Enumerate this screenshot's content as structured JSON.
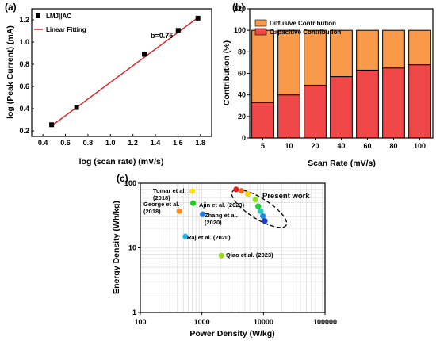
{
  "chart_data": [
    {
      "panel_label": "(a)",
      "type": "scatter",
      "xlabel": "log (scan rate) (mV/s)",
      "ylabel": "log (Peak Current) (mA)",
      "xlim": [
        0.3,
        1.9
      ],
      "ylim": [
        0.15,
        1.3
      ],
      "xticks": [
        "0.4",
        "0.6",
        "0.8",
        "1.0",
        "1.2",
        "1.4",
        "1.6",
        "1.8"
      ],
      "yticks": [
        "0.2",
        "0.4",
        "0.6",
        "0.8",
        "1.0",
        "1.2"
      ],
      "series": [
        {
          "name": "LMJ||AC",
          "color": "#000000",
          "x": [
            0.477,
            0.699,
            1.301,
            1.602,
            1.778
          ],
          "y": [
            0.255,
            0.41,
            0.89,
            1.105,
            1.215
          ]
        },
        {
          "name": "Linear Fitting",
          "color": "#e31a1c",
          "x": [
            0.477,
            1.778
          ],
          "y": [
            0.245,
            1.22
          ]
        }
      ],
      "annotation": "b=0.75",
      "legend": "top-left"
    },
    {
      "panel_label": "(b)",
      "type": "bar",
      "xlabel": "Scan Rate (mV/s)",
      "ylabel": "Contribution (%)",
      "ylim": [
        0,
        120
      ],
      "yticks": [
        "0",
        "20",
        "40",
        "60",
        "80",
        "100",
        "120"
      ],
      "categories": [
        "5",
        "10",
        "20",
        "40",
        "60",
        "80",
        "100"
      ],
      "series": [
        {
          "name": "Capacitive Contribution",
          "color": "#f04848",
          "values": [
            33,
            40,
            49,
            57,
            63,
            65,
            68
          ]
        },
        {
          "name": "Diffusive Contribution",
          "color": "#f9994a",
          "values": [
            67,
            60,
            51,
            43,
            37,
            35,
            32
          ]
        }
      ],
      "legend": "top"
    },
    {
      "panel_label": "(c)",
      "type": "scatter",
      "xlabel": "Power Density (W/kg)",
      "ylabel": "Energy Density (Wh/kg)",
      "xscale": "log",
      "yscale": "log",
      "xlim": [
        100,
        100000
      ],
      "ylim": [
        1,
        100
      ],
      "xticks": [
        "100",
        "1000",
        "10000",
        "100000"
      ],
      "yticks": [
        "1",
        "10",
        "100"
      ],
      "points": [
        {
          "label": "Tomar et al.\n(2018)",
          "x": 700,
          "y": 75,
          "color": "#ffe000"
        },
        {
          "label": "George et al.\n(2018)",
          "x": 430,
          "y": 37,
          "color": "#ff8c1a"
        },
        {
          "label": "Ajin et al. (2023)",
          "x": 720,
          "y": 49,
          "color": "#22cc22"
        },
        {
          "label": "Zhang et al.\n(2020)",
          "x": 1030,
          "y": 33,
          "color": "#1e7ae8"
        },
        {
          "label": "Raj et al. (2020)",
          "x": 540,
          "y": 15,
          "color": "#22bbee"
        },
        {
          "label": "Qiao et al. (2023)",
          "x": 2080,
          "y": 7.6,
          "color": "#99dd22"
        }
      ],
      "present_work": {
        "label": "Present work",
        "x": [
          3600,
          4400,
          5600,
          7400,
          8200,
          9000,
          9800,
          10500
        ],
        "y": [
          80,
          76,
          68,
          56,
          44,
          37,
          31,
          26
        ],
        "colors": [
          "#e81e1e",
          "#f26a1a",
          "#ffd400",
          "#8ce01e",
          "#1ecc33",
          "#1ecfc0",
          "#1e8ae8",
          "#1a3ad8"
        ]
      },
      "grid": true
    }
  ]
}
